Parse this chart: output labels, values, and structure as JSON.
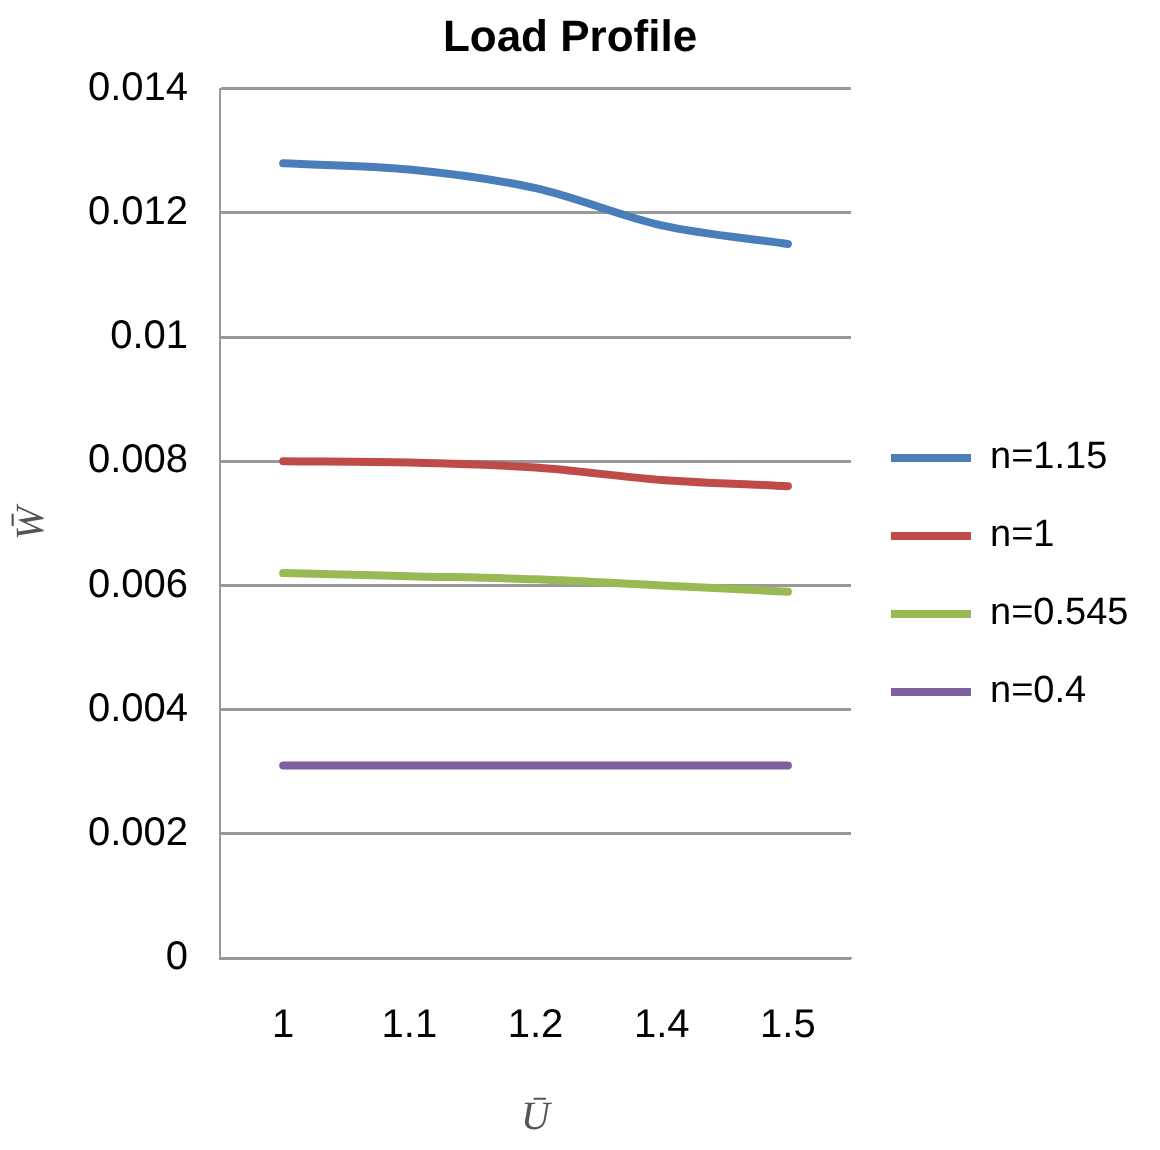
{
  "chart_data": {
    "type": "line",
    "title": "Load Profile",
    "xlabel": "Ū",
    "ylabel": "W̄",
    "categories": [
      "1",
      "1.1",
      "1.2",
      "1.4",
      "1.5"
    ],
    "series": [
      {
        "name": "n=1.15",
        "color": "#4a7ebb",
        "values": [
          0.0128,
          0.0127,
          0.0124,
          0.0118,
          0.0115
        ]
      },
      {
        "name": "n=1",
        "color": "#be4b48",
        "values": [
          0.008,
          0.00798,
          0.0079,
          0.0077,
          0.0076
        ]
      },
      {
        "name": "n=0.545",
        "color": "#98b954",
        "values": [
          0.0062,
          0.00615,
          0.0061,
          0.006,
          0.0059
        ]
      },
      {
        "name": "n=0.4",
        "color": "#7d60a0",
        "values": [
          0.0031,
          0.0031,
          0.0031,
          0.0031,
          0.0031
        ]
      }
    ],
    "ylim": [
      0,
      0.014
    ],
    "yticks": [
      0,
      0.002,
      0.004,
      0.006,
      0.008,
      0.01,
      0.012,
      0.014
    ],
    "grid": "y",
    "legend": "right",
    "marker": "none",
    "line_style": "solid"
  }
}
